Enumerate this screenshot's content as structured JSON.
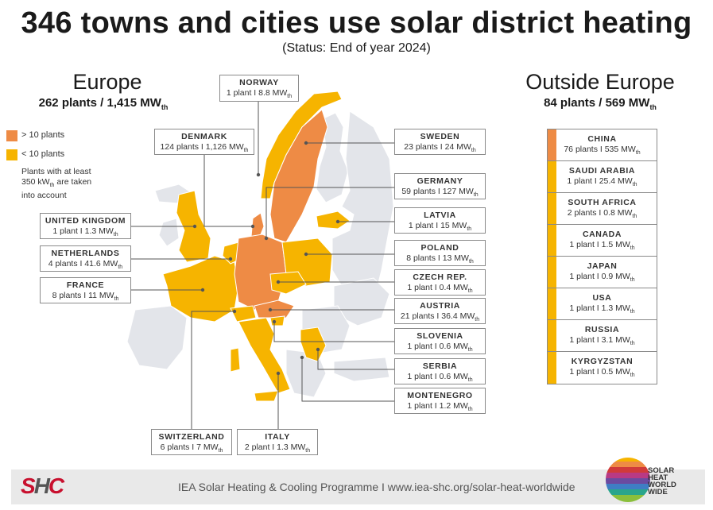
{
  "title": "346 towns and cities use solar district heating",
  "subtitle": "(Status: End of year 2024)",
  "europe": {
    "heading": "Europe",
    "summary": "262 plants / 1,415 MW",
    "unit_sub": "th"
  },
  "outside": {
    "heading": "Outside Europe",
    "summary": "84 plants / 569 MW",
    "unit_sub": "th"
  },
  "legend": {
    "high": {
      "label": "> 10 plants",
      "color": "#ee8b45"
    },
    "low": {
      "label": "< 10 plants",
      "color": "#f6b400"
    },
    "note_a": "Plants with at least",
    "note_b": "350 kW",
    "note_b_sub": "th",
    "note_c": " are taken",
    "note_d": "into account"
  },
  "colors": {
    "land": "#e3e5ea",
    "high": "#ee8b45",
    "low": "#f6b400",
    "line": "#555555"
  },
  "europe_countries": [
    {
      "id": "norway",
      "name": "NORWAY",
      "stats": "1 plant I 8.8 MW",
      "sub": "th",
      "level": "low"
    },
    {
      "id": "denmark",
      "name": "DENMARK",
      "stats": "124 plants I 1,126 MW",
      "sub": "th",
      "level": "high"
    },
    {
      "id": "sweden",
      "name": "SWEDEN",
      "stats": "23 plants I 24 MW",
      "sub": "th",
      "level": "high"
    },
    {
      "id": "germany",
      "name": "GERMANY",
      "stats": "59 plants I 127 MW",
      "sub": "th",
      "level": "high"
    },
    {
      "id": "latvia",
      "name": "LATVIA",
      "stats": "1 plant I 15 MW",
      "sub": "th",
      "level": "low"
    },
    {
      "id": "poland",
      "name": "POLAND",
      "stats": "8 plants I 13 MW",
      "sub": "th",
      "level": "low"
    },
    {
      "id": "czech",
      "name": "CZECH REP.",
      "stats": "1 plant I 0.4 MW",
      "sub": "th",
      "level": "low"
    },
    {
      "id": "austria",
      "name": "AUSTRIA",
      "stats": "21 plants I 36.4 MW",
      "sub": "th",
      "level": "high"
    },
    {
      "id": "slovenia",
      "name": "SLOVENIA",
      "stats": "1 plant I 0.6 MW",
      "sub": "th",
      "level": "low"
    },
    {
      "id": "serbia",
      "name": "SERBIA",
      "stats": "1 plant I 0.6 MW",
      "sub": "th",
      "level": "low"
    },
    {
      "id": "montenegro",
      "name": "MONTENEGRO",
      "stats": "1 plant I 1.2 MW",
      "sub": "th",
      "level": "low"
    },
    {
      "id": "uk",
      "name": "UNITED KINGDOM",
      "stats": "1 plant I 1.3 MW",
      "sub": "th",
      "level": "low"
    },
    {
      "id": "netherlands",
      "name": "NETHERLANDS",
      "stats": "4 plants I 41.6 MW",
      "sub": "th",
      "level": "low"
    },
    {
      "id": "france",
      "name": "FRANCE",
      "stats": "8 plants I 11 MW",
      "sub": "th",
      "level": "low"
    },
    {
      "id": "switzerland",
      "name": "SWITZERLAND",
      "stats": "6 plants I 7 MW",
      "sub": "th",
      "level": "low"
    },
    {
      "id": "italy",
      "name": "ITALY",
      "stats": "2 plant I 1.3 MW",
      "sub": "th",
      "level": "low"
    }
  ],
  "outside_countries": [
    {
      "name": "CHINA",
      "stats": "76 plants I 535 MW",
      "sub": "th",
      "level": "high"
    },
    {
      "name": "SAUDI ARABIA",
      "stats": "1 plant I 25.4 MW",
      "sub": "th",
      "level": "low"
    },
    {
      "name": "SOUTH AFRICA",
      "stats": "2 plants I 0.8 MW",
      "sub": "th",
      "level": "low"
    },
    {
      "name": "CANADA",
      "stats": "1 plant I 1.5 MW",
      "sub": "th",
      "level": "low"
    },
    {
      "name": "JAPAN",
      "stats": "1 plant I 0.9 MW",
      "sub": "th",
      "level": "low"
    },
    {
      "name": "USA",
      "stats": "1 plant I 1.3 MW",
      "sub": "th",
      "level": "low"
    },
    {
      "name": "RUSSIA",
      "stats": "1 plant I 3.1 MW",
      "sub": "th",
      "level": "low"
    },
    {
      "name": "KYRGYZSTAN",
      "stats": "1 plant I 0.5 MW",
      "sub": "th",
      "level": "low"
    }
  ],
  "footer": {
    "logo_s": "S",
    "logo_h": "H",
    "logo_c": "C",
    "text": "IEA Solar Heating & Cooling Programme I www.iea-shc.org/solar-heat-worldwide",
    "badge_line1": "SOLAR",
    "badge_line2": "HEAT",
    "badge_line3": "WORLD",
    "badge_line4": "WIDE"
  }
}
